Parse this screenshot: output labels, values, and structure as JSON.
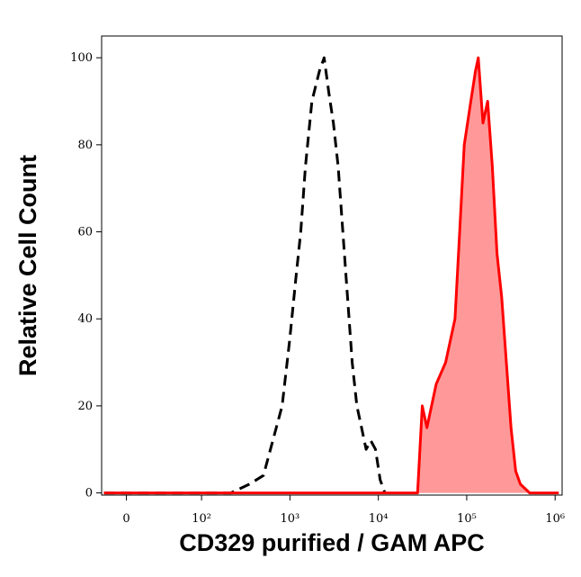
{
  "chart_data": {
    "type": "histogram-overlay",
    "x_label": "CD329 purified / GAM APC",
    "y_label": "Relative Cell Count",
    "x_scale": "biexponential",
    "xlim": [
      -33,
      1200000
    ],
    "ylim": [
      -0.5,
      105
    ],
    "xticks": [
      0,
      {
        "value": 100,
        "label": "10²"
      },
      {
        "value": 1000,
        "label": "10³"
      },
      {
        "value": 10000,
        "label": "10⁴"
      },
      {
        "value": 100000,
        "label": "10⁵"
      },
      {
        "value": 1000000,
        "label": "10⁶"
      }
    ],
    "yticks": [
      0,
      20,
      40,
      60,
      80,
      100
    ],
    "series": [
      {
        "color": "#000000",
        "dashed": true,
        "fill": null,
        "x": [
          -30,
          214,
          348,
          501,
          639,
          815,
          991,
          1175,
          1326,
          1497,
          1774,
          2158,
          2438,
          2754,
          3105,
          3508,
          3963,
          4477,
          5058,
          5715,
          6457,
          7278,
          8222,
          9290,
          10490,
          11860
        ],
        "values": [
          0,
          0,
          2,
          4,
          12,
          20,
          35,
          50,
          60,
          75,
          90,
          97,
          100,
          92,
          85,
          75,
          60,
          45,
          30,
          20,
          15,
          10,
          12,
          10,
          3,
          0
        ]
      },
      {
        "color": "#ff0000",
        "dashed": false,
        "fill": "#ff9999",
        "x": [
          -30,
          27800,
          31400,
          35500,
          45200,
          57700,
          73600,
          83200,
          93800,
          111200,
          125600,
          135200,
          152800,
          172600,
          195000,
          219800,
          248300,
          280500,
          317000,
          358100,
          404600,
          515200,
          1100000
        ],
        "values": [
          0,
          0,
          20,
          15,
          25,
          30,
          40,
          60,
          80,
          90,
          97,
          100,
          85,
          90,
          75,
          55,
          45,
          30,
          15,
          5,
          2,
          0,
          0
        ]
      }
    ]
  }
}
